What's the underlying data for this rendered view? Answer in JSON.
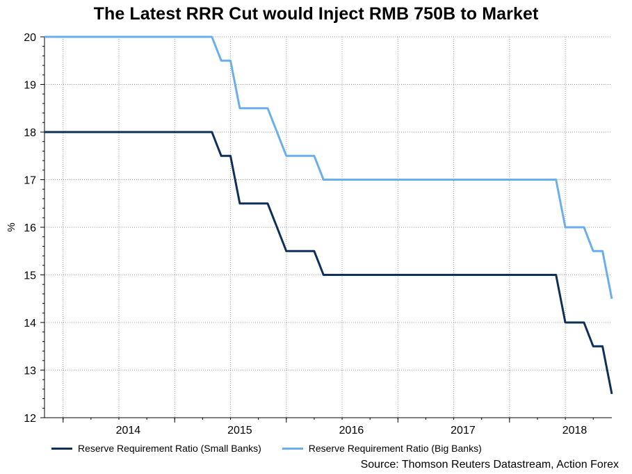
{
  "chart_data": {
    "type": "line",
    "title": "The Latest RRR Cut would Inject RMB 750B to Market",
    "ylabel": "%",
    "xlabel": "",
    "ylim": [
      12,
      20
    ],
    "yticks": [
      12,
      13,
      14,
      15,
      16,
      17,
      18,
      19,
      20
    ],
    "xlim": [
      "2013-05",
      "2018-06"
    ],
    "x_tick_labels": [
      "2014",
      "2015",
      "2016",
      "2017",
      "2018"
    ],
    "grid": true,
    "legend_position": "bottom-left",
    "series": [
      {
        "name": "Reserve Requirement Ratio (Small Banks)",
        "color": "#0d2f5a",
        "points": [
          [
            "2013-05",
            18
          ],
          [
            "2014-11",
            18
          ],
          [
            "2014-12",
            17.5
          ],
          [
            "2015-01",
            17.5
          ],
          [
            "2015-02",
            16.5
          ],
          [
            "2015-05",
            16.5
          ],
          [
            "2015-06",
            16
          ],
          [
            "2015-07",
            15.5
          ],
          [
            "2015-10",
            15.5
          ],
          [
            "2015-11",
            15
          ],
          [
            "2017-12",
            15
          ],
          [
            "2018-01",
            14
          ],
          [
            "2018-03",
            14
          ],
          [
            "2018-04",
            13.5
          ],
          [
            "2018-05",
            13.5
          ],
          [
            "2018-06",
            12.5
          ]
        ]
      },
      {
        "name": "Reserve Requirement Ratio (Big Banks)",
        "color": "#6aaef0",
        "points": [
          [
            "2013-05",
            20
          ],
          [
            "2014-11",
            20
          ],
          [
            "2014-12",
            19.5
          ],
          [
            "2015-01",
            19.5
          ],
          [
            "2015-02",
            18.5
          ],
          [
            "2015-05",
            18.5
          ],
          [
            "2015-06",
            18
          ],
          [
            "2015-07",
            17.5
          ],
          [
            "2015-10",
            17.5
          ],
          [
            "2015-11",
            17
          ],
          [
            "2017-12",
            17
          ],
          [
            "2018-01",
            16
          ],
          [
            "2018-03",
            16
          ],
          [
            "2018-04",
            15.5
          ],
          [
            "2018-05",
            15.5
          ],
          [
            "2018-06",
            14.5
          ]
        ]
      }
    ]
  },
  "source": "Source: Thomson Reuters Datastream, Action Forex"
}
